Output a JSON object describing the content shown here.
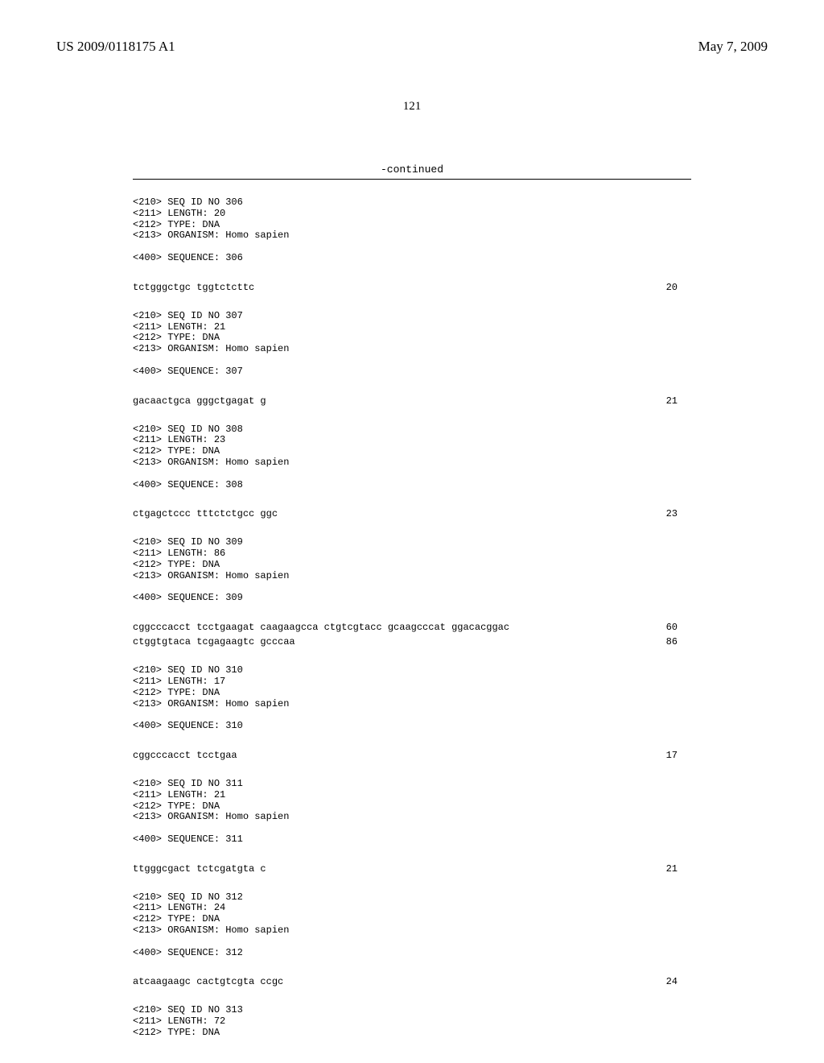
{
  "header": {
    "pub_number": "US 2009/0118175 A1",
    "pub_date": "May 7, 2009"
  },
  "page_number": "121",
  "continued_label": "-continued",
  "entries": [
    {
      "meta": "<210> SEQ ID NO 306\n<211> LENGTH: 20\n<212> TYPE: DNA\n<213> ORGANISM: Homo sapien\n\n<400> SEQUENCE: 306",
      "lines": [
        {
          "seq": "tctgggctgc tggtctcttc",
          "num": "20"
        }
      ]
    },
    {
      "meta": "<210> SEQ ID NO 307\n<211> LENGTH: 21\n<212> TYPE: DNA\n<213> ORGANISM: Homo sapien\n\n<400> SEQUENCE: 307",
      "lines": [
        {
          "seq": "gacaactgca gggctgagat g",
          "num": "21"
        }
      ]
    },
    {
      "meta": "<210> SEQ ID NO 308\n<211> LENGTH: 23\n<212> TYPE: DNA\n<213> ORGANISM: Homo sapien\n\n<400> SEQUENCE: 308",
      "lines": [
        {
          "seq": "ctgagctccc tttctctgcc ggc",
          "num": "23"
        }
      ]
    },
    {
      "meta": "<210> SEQ ID NO 309\n<211> LENGTH: 86\n<212> TYPE: DNA\n<213> ORGANISM: Homo sapien\n\n<400> SEQUENCE: 309",
      "lines": [
        {
          "seq": "cggcccacct tcctgaagat caagaagcca ctgtcgtacc gcaagcccat ggacacggac",
          "num": "60"
        },
        {
          "seq": "ctggtgtaca tcgagaagtc gcccaa",
          "num": "86"
        }
      ]
    },
    {
      "meta": "<210> SEQ ID NO 310\n<211> LENGTH: 17\n<212> TYPE: DNA\n<213> ORGANISM: Homo sapien\n\n<400> SEQUENCE: 310",
      "lines": [
        {
          "seq": "cggcccacct tcctgaa",
          "num": "17"
        }
      ]
    },
    {
      "meta": "<210> SEQ ID NO 311\n<211> LENGTH: 21\n<212> TYPE: DNA\n<213> ORGANISM: Homo sapien\n\n<400> SEQUENCE: 311",
      "lines": [
        {
          "seq": "ttgggcgact tctcgatgta c",
          "num": "21"
        }
      ]
    },
    {
      "meta": "<210> SEQ ID NO 312\n<211> LENGTH: 24\n<212> TYPE: DNA\n<213> ORGANISM: Homo sapien\n\n<400> SEQUENCE: 312",
      "lines": [
        {
          "seq": "atcaagaagc cactgtcgta ccgc",
          "num": "24"
        }
      ]
    },
    {
      "meta": "<210> SEQ ID NO 313\n<211> LENGTH: 72\n<212> TYPE: DNA",
      "lines": []
    }
  ]
}
